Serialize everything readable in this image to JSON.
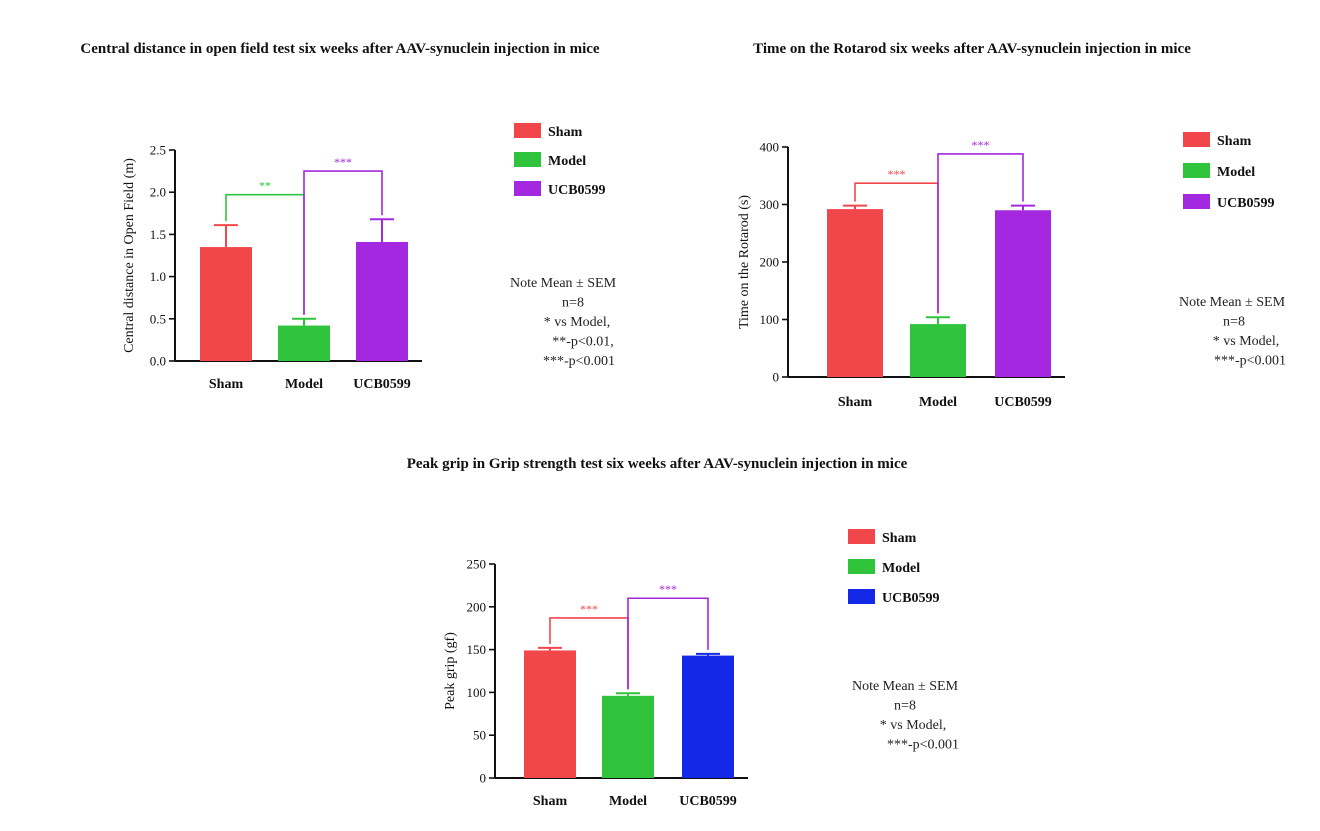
{
  "chart_data": [
    {
      "type": "bar",
      "title": "Central distance in open field test six weeks after AAV-synuclein injection in mice",
      "xlabel": "",
      "ylabel": "Central distance in Open Field (m)",
      "ylim": [
        0,
        2.5
      ],
      "yticks": [
        "0.0",
        "0.5",
        "1.0",
        "1.5",
        "2.0",
        "2.5"
      ],
      "ytick_values": [
        0,
        0.5,
        1.0,
        1.5,
        2.0,
        2.5
      ],
      "categories": [
        "Sham",
        "Model",
        "UCB0599"
      ],
      "values": [
        1.35,
        0.42,
        1.41
      ],
      "errors": [
        0.26,
        0.08,
        0.27
      ],
      "colors": [
        "#f2474a",
        "#2fc43c",
        "#a428e0"
      ],
      "legend": [
        {
          "label": "Sham",
          "color": "#f2474a"
        },
        {
          "label": "Model",
          "color": "#2fc43c"
        },
        {
          "label": "UCB0599",
          "color": "#a428e0"
        }
      ],
      "significance": [
        {
          "from": 0,
          "to": 1,
          "label": "**",
          "level": 1.97,
          "color": "#2fc43c"
        },
        {
          "from": 1,
          "to": 2,
          "label": "***",
          "level": 2.25,
          "color": "#a428e0"
        }
      ],
      "note": [
        "Note Mean ± SEM",
        "n=8",
        "* vs Model,",
        "**-p<0.01,",
        "***-p<0.001"
      ]
    },
    {
      "type": "bar",
      "title": "Time on the Rotarod six weeks after AAV-synuclein injection in mice",
      "xlabel": "",
      "ylabel": "Time on the Rotarod (s)",
      "ylim": [
        0,
        400
      ],
      "yticks": [
        "0",
        "100",
        "200",
        "300",
        "400"
      ],
      "ytick_values": [
        0,
        100,
        200,
        300,
        400
      ],
      "categories": [
        "Sham",
        "Model",
        "UCB0599"
      ],
      "values": [
        292,
        92,
        290
      ],
      "errors": [
        6,
        12,
        8
      ],
      "colors": [
        "#f2474a",
        "#2fc43c",
        "#a428e0"
      ],
      "legend": [
        {
          "label": "Sham",
          "color": "#f2474a"
        },
        {
          "label": "Model",
          "color": "#2fc43c"
        },
        {
          "label": "UCB0599",
          "color": "#a428e0"
        }
      ],
      "significance": [
        {
          "from": 0,
          "to": 1,
          "label": "***",
          "level": 337,
          "color": "#f2474a"
        },
        {
          "from": 1,
          "to": 2,
          "label": "***",
          "level": 388,
          "color": "#a428e0"
        }
      ],
      "note": [
        "Note Mean ± SEM",
        "n=8",
        "* vs Model,",
        "***-p<0.001"
      ]
    },
    {
      "type": "bar",
      "title": "Peak grip in Grip strength test  six weeks after AAV-synuclein injection in mice",
      "xlabel": "",
      "ylabel": "Peak grip (gf)",
      "ylim": [
        0,
        250
      ],
      "yticks": [
        "0",
        "50",
        "100",
        "150",
        "200",
        "250"
      ],
      "ytick_values": [
        0,
        50,
        100,
        150,
        200,
        250
      ],
      "categories": [
        "Sham",
        "Model",
        "UCB0599"
      ],
      "values": [
        149,
        96,
        143
      ],
      "errors": [
        3,
        3,
        2
      ],
      "colors": [
        "#f2474a",
        "#2fc43c",
        "#1428e8"
      ],
      "legend": [
        {
          "label": "Sham",
          "color": "#f2474a"
        },
        {
          "label": "Model",
          "color": "#2fc43c"
        },
        {
          "label": "UCB0599",
          "color": "#1428e8"
        }
      ],
      "significance": [
        {
          "from": 0,
          "to": 1,
          "label": "***",
          "level": 187,
          "color": "#f2474a"
        },
        {
          "from": 1,
          "to": 2,
          "label": "***",
          "level": 210,
          "color": "#a428e0"
        }
      ],
      "note": [
        "Note Mean ± SEM",
        "n=8",
        "* vs Model,",
        "***-p<0.001"
      ]
    }
  ]
}
